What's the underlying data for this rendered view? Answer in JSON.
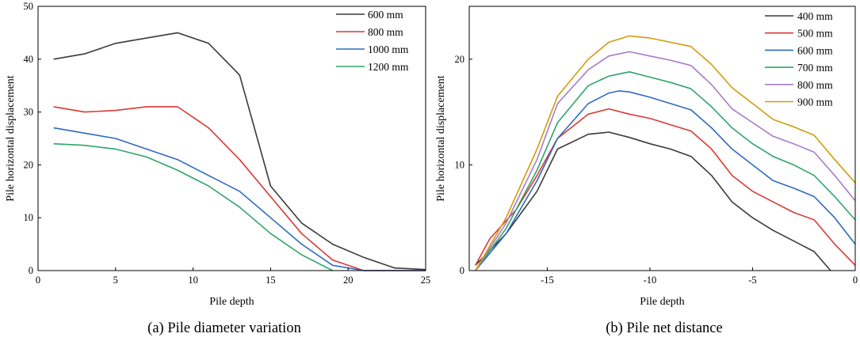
{
  "chart_data": [
    {
      "type": "line",
      "caption": "(a) Pile diameter variation",
      "xlabel": "Pile depth",
      "ylabel": "Pile horizontal displacement",
      "xlim": [
        0,
        25
      ],
      "ylim": [
        0,
        50
      ],
      "xticks": [
        0,
        5,
        10,
        15,
        20,
        25
      ],
      "yticks": [
        0,
        10,
        20,
        30,
        40,
        50
      ],
      "grid": false,
      "legend": "top-right",
      "series": [
        {
          "name": "600 mm",
          "color": "#3a3a3a",
          "x": [
            1,
            3,
            5,
            7,
            9,
            11,
            13,
            15,
            17,
            19,
            21,
            23,
            25
          ],
          "y": [
            40,
            41,
            43,
            44,
            45,
            43,
            37,
            16,
            9,
            5,
            2.5,
            0.5,
            0.2
          ]
        },
        {
          "name": "800 mm",
          "color": "#d93a35",
          "x": [
            1,
            3,
            5,
            7,
            9,
            11,
            13,
            15,
            17,
            19,
            21,
            23,
            25
          ],
          "y": [
            31,
            30,
            30.3,
            31,
            31,
            27,
            21,
            14,
            7,
            2,
            0,
            0,
            0
          ]
        },
        {
          "name": "1000 mm",
          "color": "#2e6ac2",
          "x": [
            1,
            3,
            5,
            7,
            9,
            11,
            13,
            15,
            17,
            19,
            21,
            23,
            25
          ],
          "y": [
            27,
            26,
            25,
            23,
            21,
            18,
            15,
            10,
            5,
            1,
            0,
            0,
            0
          ]
        },
        {
          "name": "1200 mm",
          "color": "#2ea56a",
          "x": [
            1,
            3,
            5,
            7,
            9,
            11,
            13,
            15,
            17,
            19
          ],
          "y": [
            24,
            23.7,
            23,
            21.5,
            19,
            16,
            12,
            7,
            3,
            0
          ]
        }
      ]
    },
    {
      "type": "line",
      "caption": "(b) Pile net distance",
      "xlabel": "Pile depth",
      "ylabel": "Pile horizontal displacement",
      "xlim": [
        -18.8,
        0
      ],
      "ylim": [
        0,
        25
      ],
      "xticks": [
        -15,
        -10,
        -5,
        0
      ],
      "yticks": [
        0,
        10,
        20
      ],
      "grid": false,
      "legend": "top-right",
      "series": [
        {
          "name": "400 mm",
          "color": "#3a3a3a",
          "x": [
            -18.5,
            -17,
            -15.5,
            -14.5,
            -13,
            -12,
            -11,
            -10,
            -9,
            -8,
            -7,
            -6,
            -5,
            -4,
            -3,
            -2,
            -1.2
          ],
          "y": [
            0.5,
            3.5,
            7.5,
            11.5,
            12.9,
            13.1,
            12.6,
            12,
            11.5,
            10.8,
            9,
            6.5,
            5,
            3.8,
            2.8,
            1.8,
            0
          ]
        },
        {
          "name": "500 mm",
          "color": "#d93a35",
          "x": [
            -18.5,
            -17.8,
            -16.5,
            -15.5,
            -14.5,
            -13,
            -12,
            -11,
            -10,
            -9,
            -8,
            -7,
            -6,
            -5,
            -4,
            -3,
            -2,
            -1,
            0
          ],
          "y": [
            0.5,
            3,
            5.8,
            9,
            12.5,
            14.8,
            15.3,
            14.8,
            14.4,
            13.8,
            13.2,
            11.5,
            9,
            7.5,
            6.5,
            5.5,
            4.8,
            2.5,
            0.5
          ]
        },
        {
          "name": "600 mm",
          "color": "#2e6ac2",
          "x": [
            -18.5,
            -17,
            -15.5,
            -14.5,
            -13,
            -12,
            -11.5,
            -11,
            -10,
            -9,
            -8,
            -7,
            -6,
            -5,
            -4,
            -3,
            -2,
            -1,
            0
          ],
          "y": [
            0,
            3.5,
            8.5,
            12.5,
            15.8,
            16.8,
            17,
            16.9,
            16.4,
            15.8,
            15.2,
            13.5,
            11.5,
            10,
            8.5,
            7.8,
            7,
            5,
            2.5
          ]
        },
        {
          "name": "700 mm",
          "color": "#2ea56a",
          "x": [
            -18.5,
            -17,
            -15.5,
            -14.5,
            -13,
            -12,
            -11,
            -10,
            -9,
            -8,
            -7,
            -6,
            -5,
            -4,
            -3,
            -2,
            -1,
            0
          ],
          "y": [
            0,
            4,
            9.5,
            14,
            17.5,
            18.4,
            18.8,
            18.3,
            17.8,
            17.2,
            15.5,
            13.5,
            12,
            10.8,
            10,
            9,
            7,
            4.8
          ]
        },
        {
          "name": "800 mm",
          "color": "#a87cc8",
          "x": [
            -18.5,
            -17,
            -15.5,
            -14.5,
            -13,
            -12,
            -11,
            -10,
            -9,
            -8,
            -7,
            -6,
            -5,
            -4,
            -3,
            -2,
            -1,
            0
          ],
          "y": [
            0,
            4.5,
            10.5,
            15.8,
            19,
            20.3,
            20.7,
            20.3,
            19.9,
            19.4,
            17.6,
            15.3,
            14,
            12.7,
            12,
            11.2,
            9,
            6.6
          ]
        },
        {
          "name": "900 mm",
          "color": "#d49a0c",
          "x": [
            -18.5,
            -17,
            -15.5,
            -14.5,
            -13,
            -12,
            -11,
            -10,
            -9,
            -8,
            -7,
            -6,
            -5,
            -4,
            -3,
            -2,
            -1,
            0
          ],
          "y": [
            0,
            5,
            11.5,
            16.5,
            20,
            21.6,
            22.2,
            22,
            21.6,
            21.2,
            19.5,
            17.3,
            15.8,
            14.3,
            13.6,
            12.8,
            10.5,
            8.3
          ]
        }
      ]
    }
  ]
}
